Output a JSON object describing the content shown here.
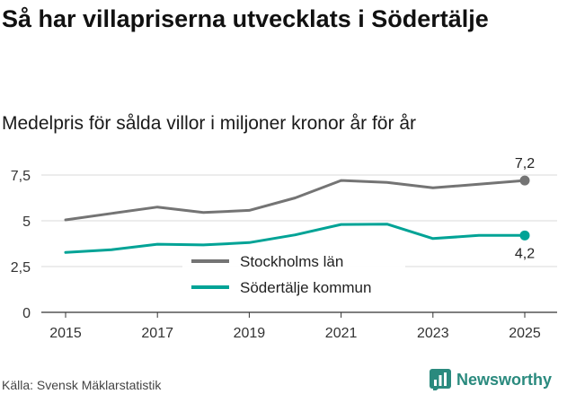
{
  "title": "Så har villapriserna utvecklats i Södertälje",
  "subtitle": "Medelpris för sålda villor i miljoner kronor år för år",
  "source": "Källa: Svensk Mäklarstatistik",
  "brand": {
    "name": "Newsworthy",
    "icon": "bar-chart-logo-icon",
    "color": "#2a8a7e"
  },
  "chart_data": {
    "type": "line",
    "title": "Så har villapriserna utvecklats i Södertälje",
    "subtitle": "Medelpris för sålda villor i miljoner kronor år för år",
    "xlabel": "",
    "ylabel": "",
    "x": [
      2015,
      2016,
      2017,
      2018,
      2019,
      2020,
      2021,
      2022,
      2023,
      2024,
      2025
    ],
    "x_ticks": [
      2015,
      2017,
      2019,
      2021,
      2023,
      2025
    ],
    "x_tick_labels": [
      "2015",
      "2017",
      "2019",
      "2021",
      "2023",
      "2025"
    ],
    "ylim": [
      0,
      8
    ],
    "y_ticks": [
      0,
      2.5,
      5,
      7.5
    ],
    "y_tick_labels": [
      "0",
      "2,5",
      "5",
      "7,5"
    ],
    "grid": "horizontal",
    "legend_position": "center",
    "series": [
      {
        "name": "Stockholms län",
        "color": "#747474",
        "values": [
          5.05,
          5.4,
          5.75,
          5.45,
          5.57,
          6.25,
          7.2,
          7.1,
          6.8,
          7.0,
          7.2
        ],
        "end_label": "7,2"
      },
      {
        "name": "Södertälje kommun",
        "color": "#00a396",
        "values": [
          3.27,
          3.42,
          3.72,
          3.68,
          3.81,
          4.23,
          4.8,
          4.82,
          4.03,
          4.2,
          4.2
        ],
        "end_label": "4,2"
      }
    ]
  }
}
